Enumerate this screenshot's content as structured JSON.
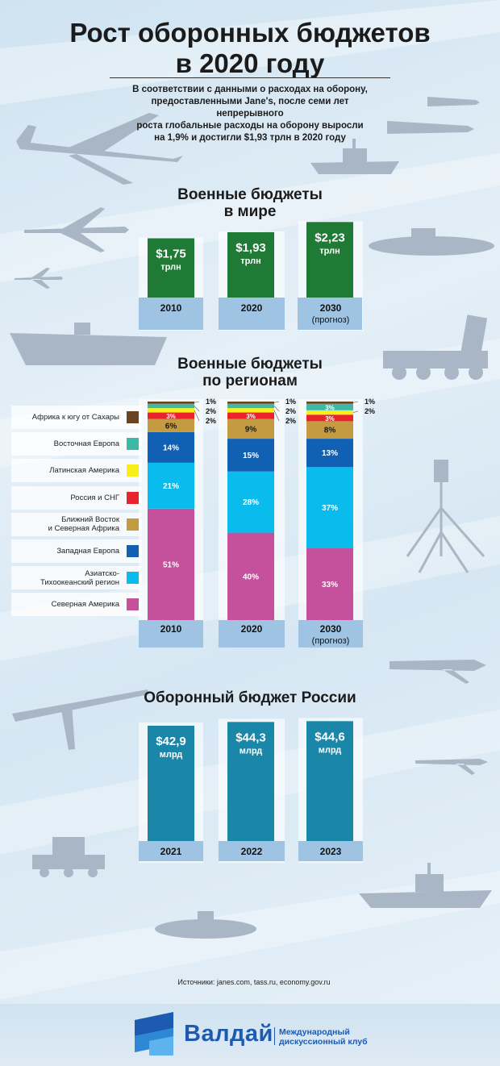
{
  "header": {
    "title_line1": "Рост оборонных бюджетов",
    "title_line2": "в 2020 году",
    "intro_lines": [
      "В соответствии с данными о расходах на оборону,",
      "предоставленными Jane's, после семи лет непрерывного",
      "роста глобальные расходы на оборону выросли",
      "на 1,9% и достигли $1,93 трлн в 2020 году"
    ]
  },
  "sections": {
    "world": {
      "title_line1": "Военные бюджеты",
      "title_line2": "в мире"
    },
    "regions": {
      "title_line1": "Военные бюджеты",
      "title_line2": "по регионам"
    },
    "russia": {
      "title": "Оборонный бюджет России"
    }
  },
  "colors": {
    "green": "#1e7a34",
    "teal": "#1b87a8",
    "label_strip": "#9fc3e3"
  },
  "chart_data": [
    {
      "type": "bar",
      "title": "Военные бюджеты в мире",
      "categories": [
        "2010",
        "2020",
        "2030"
      ],
      "category_notes": [
        "",
        "",
        "(прогноз)"
      ],
      "values": [
        1.75,
        1.93,
        2.23
      ],
      "value_labels": [
        "$1,75",
        "$1,93",
        "$2,23"
      ],
      "unit_label": "трлн",
      "ylim": [
        0,
        2.5
      ]
    },
    {
      "type": "bar",
      "stacked": true,
      "title": "Военные бюджеты по регионам",
      "categories": [
        "2010",
        "2020",
        "2030"
      ],
      "category_notes": [
        "",
        "",
        "(прогноз)"
      ],
      "series": [
        {
          "name": "Северная Америка",
          "color": "#c5509b",
          "values": [
            51,
            40,
            33
          ]
        },
        {
          "name": "Азиатско-Тихоокеанский регион",
          "color": "#0abcee",
          "values": [
            21,
            28,
            37
          ]
        },
        {
          "name": "Западная Европа",
          "color": "#1060b4",
          "values": [
            14,
            15,
            13
          ]
        },
        {
          "name": "Ближний Восток и Северная Африка",
          "color": "#c49b41",
          "values": [
            6,
            9,
            8
          ]
        },
        {
          "name": "Россия и СНГ",
          "color": "#e8232c",
          "values": [
            3,
            3,
            3
          ]
        },
        {
          "name": "Латинская Америка",
          "color": "#f8ee1a",
          "values": [
            2,
            2,
            2
          ]
        },
        {
          "name": "Восточная Европа",
          "color": "#3db9a6",
          "values": [
            2,
            2,
            3
          ]
        },
        {
          "name": "Африка к югу от Сахары",
          "color": "#6b4520",
          "values": [
            1,
            1,
            1
          ]
        }
      ],
      "legend_order": [
        "Африка к югу от Сахары",
        "Восточная Европа",
        "Латинская Америка",
        "Россия и СНГ",
        "Ближний Восток и Северная Африка",
        "Западная Европа",
        "Азиатско-Тихоокеанский регион",
        "Северная Америка"
      ],
      "legend_lines": [
        [
          "Африка к югу от Сахары"
        ],
        [
          "Восточная Европа"
        ],
        [
          "Латинская Америка"
        ],
        [
          "Россия и СНГ"
        ],
        [
          "Ближний Восток",
          "и Северная Африка"
        ],
        [
          "Западная Европа"
        ],
        [
          "Азиатско-",
          "Тихоокеанский регион"
        ],
        [
          "Северная Америка"
        ]
      ],
      "unit": "%"
    },
    {
      "type": "bar",
      "title": "Оборонный бюджет России",
      "categories": [
        "2021",
        "2022",
        "2023"
      ],
      "values": [
        42.9,
        44.3,
        44.6
      ],
      "value_labels": [
        "$42,9",
        "$44,3",
        "$44,6"
      ],
      "unit_label": "млрд",
      "ylim": [
        0,
        45
      ]
    }
  ],
  "source_text": "Источники: janes.com, tass.ru, economy.gov.ru",
  "logo": {
    "word": "Валдай",
    "sub_line1": "Международный",
    "sub_line2": "дискуссионный клуб"
  }
}
